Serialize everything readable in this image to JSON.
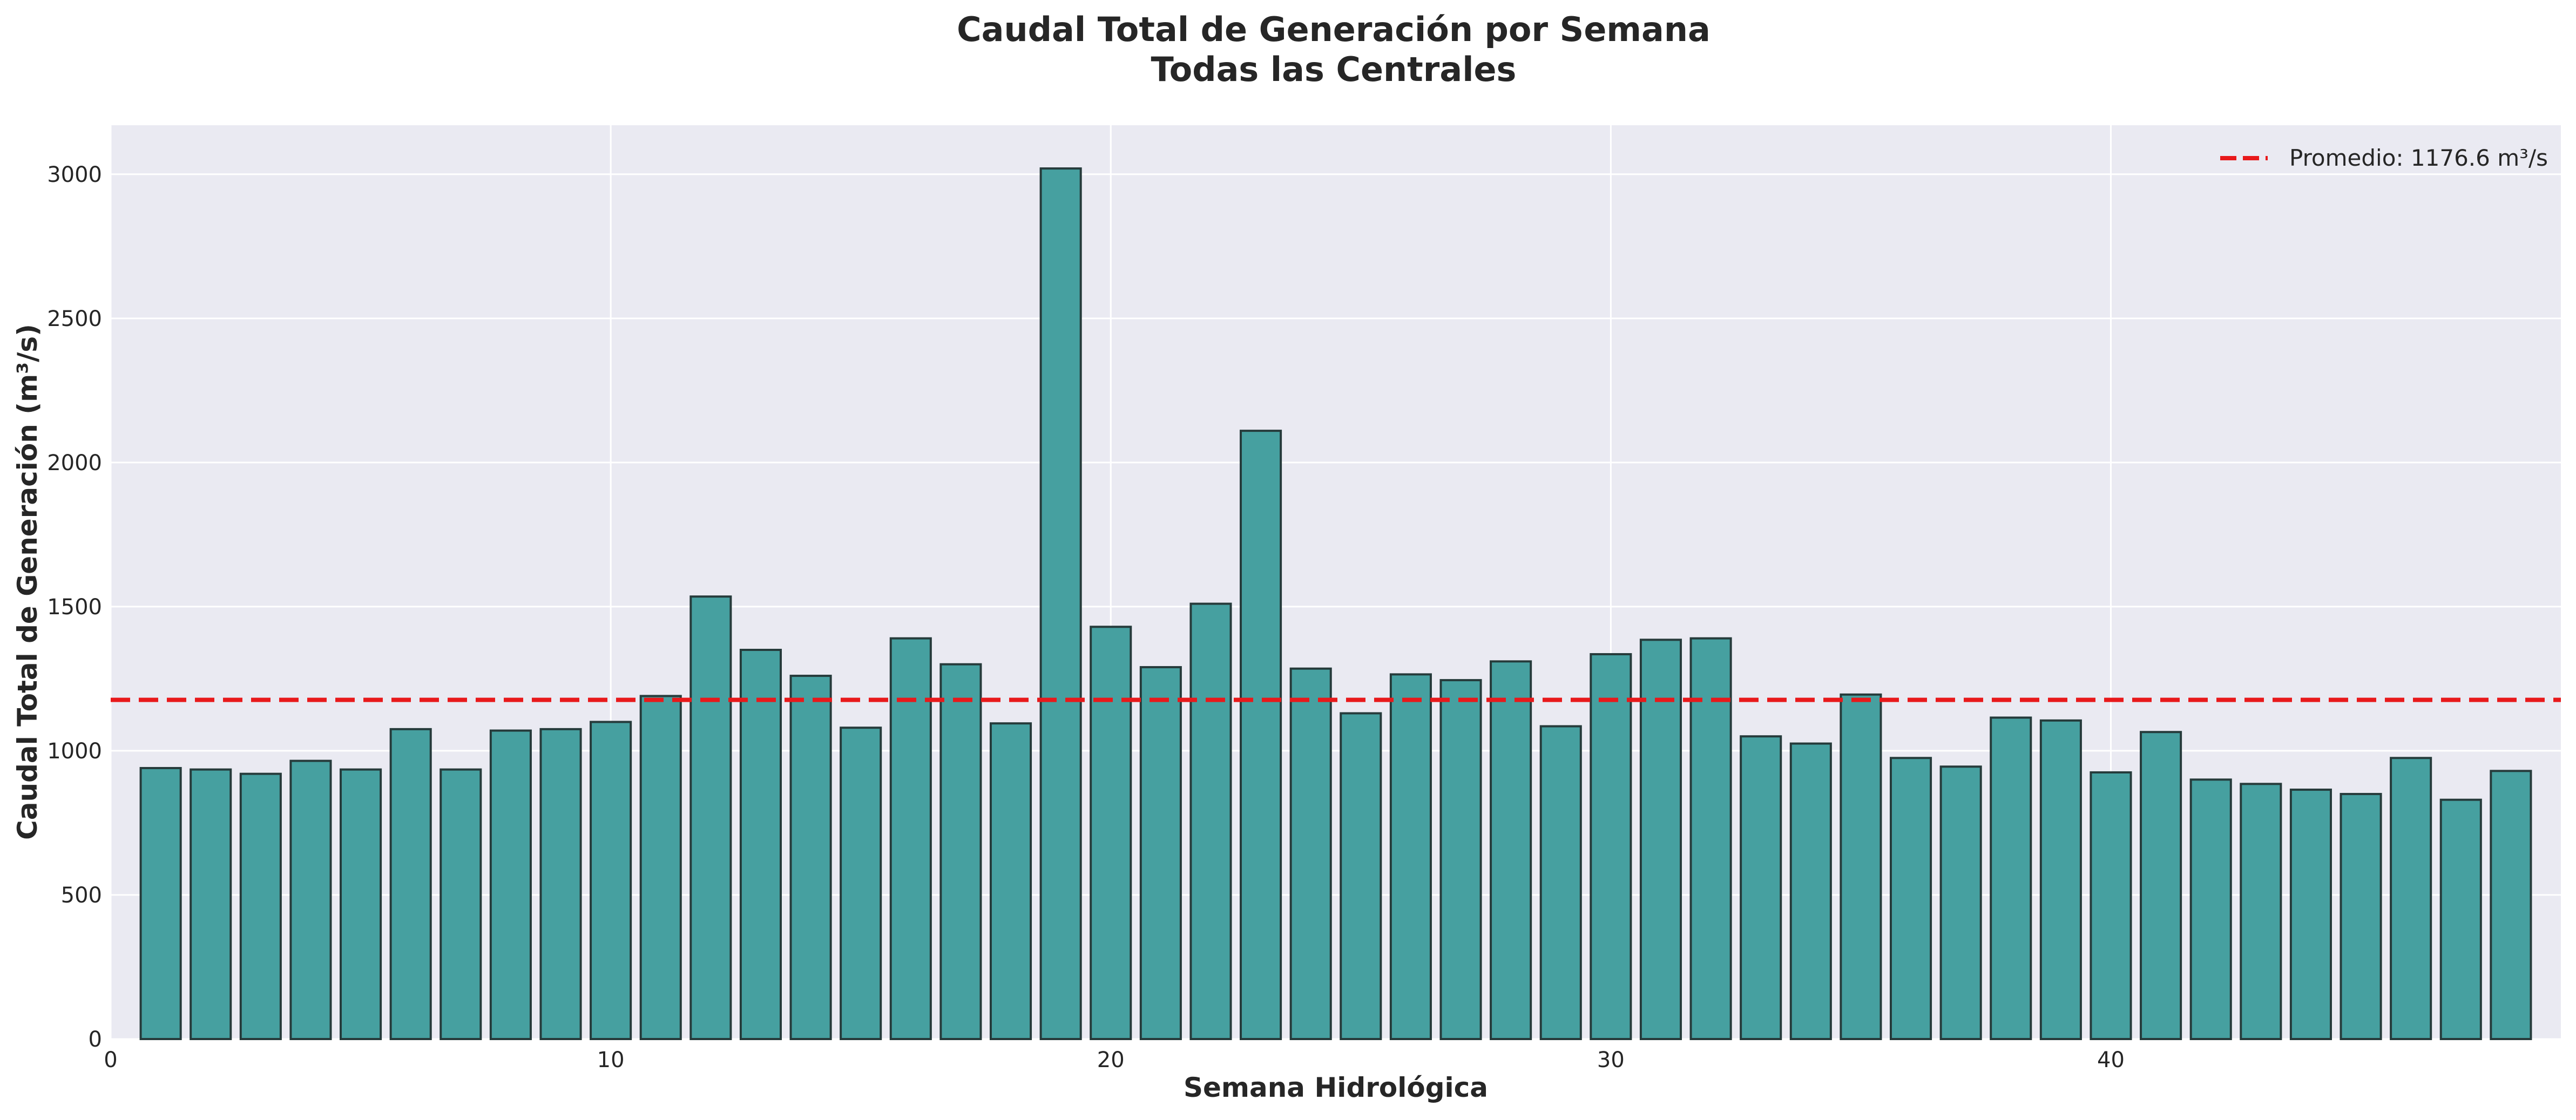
{
  "chart_data": {
    "type": "bar",
    "title_lines": [
      "Caudal Total de Generación por Semana",
      "Todas las Centrales"
    ],
    "xlabel": "Semana Hidrológica",
    "ylabel": "Caudal Total de Generación (m³/s)",
    "x": [
      1,
      2,
      3,
      4,
      5,
      6,
      7,
      8,
      9,
      10,
      11,
      12,
      13,
      14,
      15,
      16,
      17,
      18,
      19,
      20,
      21,
      22,
      23,
      24,
      25,
      26,
      27,
      28,
      29,
      30,
      31,
      32,
      33,
      34,
      35,
      36,
      37,
      38,
      39,
      40,
      41,
      42,
      43,
      44,
      45,
      46,
      47,
      48
    ],
    "values": [
      940,
      935,
      920,
      965,
      935,
      1075,
      935,
      1070,
      1075,
      1100,
      1190,
      1535,
      1350,
      1260,
      1080,
      1390,
      1300,
      1095,
      3020,
      1430,
      1290,
      1510,
      2110,
      1285,
      1130,
      1265,
      1245,
      1310,
      1085,
      1335,
      1385,
      1390,
      1050,
      1025,
      1195,
      975,
      945,
      1115,
      1105,
      925,
      1065,
      900,
      885,
      865,
      850,
      975,
      830,
      930
    ],
    "xlim": [
      0,
      49
    ],
    "ylim": [
      0,
      3170
    ],
    "xticks": [
      "0",
      "10",
      "20",
      "30",
      "40"
    ],
    "yticks": [
      "0",
      "500",
      "1000",
      "1500",
      "2000",
      "2500",
      "3000"
    ],
    "mean_line": {
      "value": 1176.6,
      "label": "Promedio: 1176.6 m³/s",
      "color": "#e8191b",
      "style": "dashed"
    },
    "bar_color": "#46a0a0",
    "bar_edge_color": "#263b3b",
    "background_color": "#eaeaf2",
    "grid": true,
    "legend_position": "top-right"
  }
}
